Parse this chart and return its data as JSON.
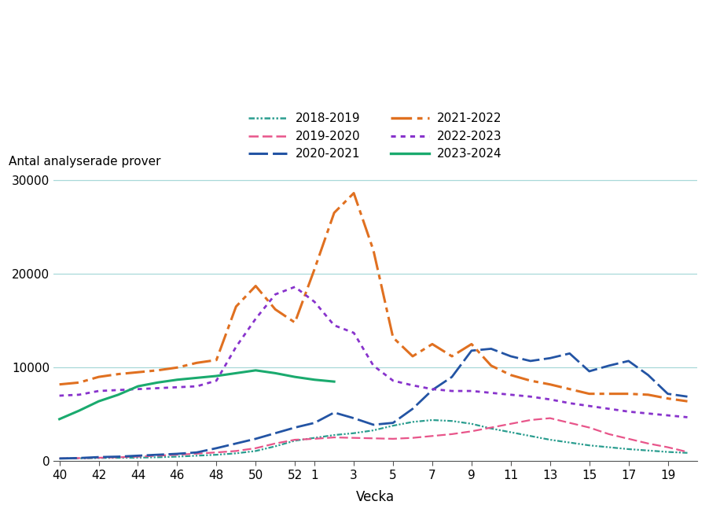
{
  "ylabel": "Antal analyserade prover",
  "xlabel": "Vecka",
  "background_color": "#ffffff",
  "grid_color": "#a8d8d8",
  "ylim": [
    0,
    31000
  ],
  "yticks": [
    0,
    10000,
    20000,
    30000
  ],
  "week_order": [
    40,
    41,
    42,
    43,
    44,
    45,
    46,
    47,
    48,
    49,
    50,
    51,
    52,
    1,
    2,
    3,
    4,
    5,
    6,
    7,
    8,
    9,
    10,
    11,
    12,
    13,
    14,
    15,
    16,
    17,
    18,
    19,
    20
  ],
  "tick_labels_show": [
    "40",
    "42",
    "44",
    "46",
    "48",
    "50",
    "52",
    "1",
    "3",
    "5",
    "7",
    "9",
    "11",
    "13",
    "15",
    "17",
    "19"
  ],
  "series": {
    "2018-2019": {
      "color": "#2a9d8f",
      "ls": [
        3,
        1,
        1,
        1,
        1,
        1
      ],
      "lw": 1.6,
      "data": [
        300,
        320,
        350,
        370,
        390,
        430,
        500,
        600,
        700,
        850,
        1100,
        1600,
        2200,
        2500,
        2800,
        3000,
        3300,
        3800,
        4200,
        4400,
        4300,
        4000,
        3500,
        3100,
        2700,
        2300,
        2000,
        1700,
        1500,
        1300,
        1150,
        1000,
        900
      ]
    },
    "2019-2020": {
      "color": "#e8558a",
      "ls": [
        5,
        2
      ],
      "lw": 1.6,
      "data": [
        300,
        340,
        380,
        430,
        500,
        600,
        700,
        820,
        950,
        1100,
        1400,
        1900,
        2300,
        2400,
        2550,
        2500,
        2450,
        2400,
        2500,
        2700,
        2900,
        3200,
        3600,
        4000,
        4400,
        4600,
        4100,
        3600,
        2900,
        2400,
        1900,
        1500,
        1000
      ]
    },
    "2020-2021": {
      "color": "#2354a4",
      "ls": [
        8,
        2
      ],
      "lw": 2.0,
      "data": [
        300,
        350,
        450,
        500,
        600,
        700,
        800,
        950,
        1400,
        1900,
        2400,
        3000,
        3600,
        4100,
        5200,
        4600,
        3900,
        4100,
        5600,
        7600,
        9000,
        11800,
        12000,
        11200,
        10700,
        11000,
        11500,
        9600,
        10200,
        10700,
        9200,
        7200,
        6900
      ]
    },
    "2021-2022": {
      "color": "#e07020",
      "ls": [
        8,
        2,
        2,
        2
      ],
      "lw": 2.2,
      "data": [
        8200,
        8400,
        9000,
        9300,
        9500,
        9700,
        10000,
        10500,
        10800,
        16500,
        18700,
        16200,
        14800,
        20500,
        26500,
        28600,
        22500,
        13200,
        11200,
        12500,
        11200,
        12500,
        10200,
        9200,
        8600,
        8200,
        7700,
        7200,
        7200,
        7200,
        7100,
        6700,
        6400
      ]
    },
    "2022-2023": {
      "color": "#8833cc",
      "ls": [
        2,
        2
      ],
      "lw": 2.0,
      "data": [
        7000,
        7100,
        7500,
        7600,
        7700,
        7800,
        7900,
        8000,
        8600,
        12200,
        15200,
        17800,
        18600,
        17000,
        14500,
        13700,
        10200,
        8600,
        8100,
        7700,
        7500,
        7500,
        7300,
        7100,
        6900,
        6600,
        6200,
        5900,
        5600,
        5300,
        5100,
        4900,
        4700
      ]
    },
    "2023-2024": {
      "color": "#1aaa6e",
      "ls": [],
      "lw": 2.2,
      "data": [
        4500,
        5400,
        6400,
        7100,
        8000,
        8400,
        8700,
        8900,
        9100,
        9400,
        9700,
        9400,
        9000,
        8700,
        8500,
        null,
        null,
        null,
        null,
        null,
        null,
        null,
        null,
        null,
        null,
        null,
        null,
        null,
        null,
        null,
        null,
        null,
        null
      ]
    }
  },
  "legend_order": [
    "2018-2019",
    "2019-2020",
    "2020-2021",
    "2021-2022",
    "2022-2023",
    "2023-2024"
  ],
  "legend_ncol_order": [
    0,
    2,
    4,
    1,
    3,
    5
  ]
}
